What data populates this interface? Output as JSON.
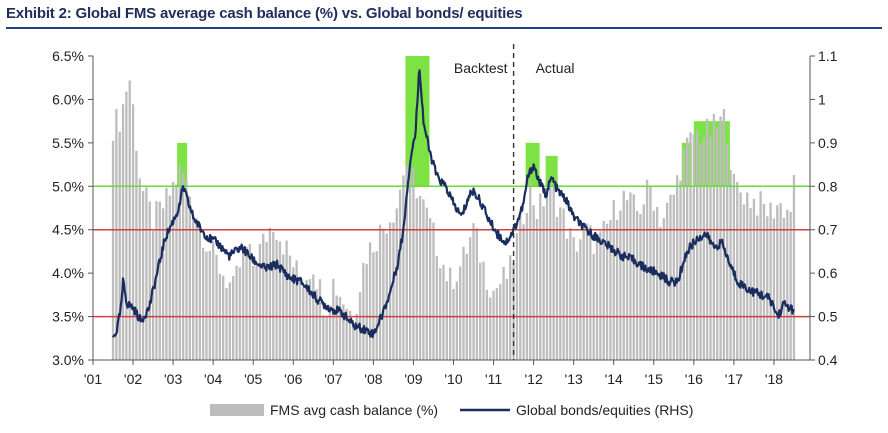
{
  "exhibit": {
    "title": "Exhibit 2: Global FMS average cash balance (%) vs. Global bonds/ equities"
  },
  "chart_data": {
    "type": "bar+line",
    "title": "Exhibit 2: Global FMS average cash balance (%) vs. Global bonds/ equities",
    "x_ticks": [
      "'01",
      "'02",
      "'03",
      "'04",
      "'05",
      "'06",
      "'07",
      "'08",
      "'09",
      "'10",
      "'11",
      "'12",
      "'13",
      "'14",
      "'15",
      "'16",
      "'17",
      "'18"
    ],
    "y_left": {
      "min": 3.0,
      "max": 6.5,
      "ticks": [
        "3.0%",
        "3.5%",
        "4.0%",
        "4.5%",
        "5.0%",
        "5.5%",
        "6.0%",
        "6.5%"
      ]
    },
    "y_right": {
      "min": 0.4,
      "max": 1.1,
      "ticks": [
        "0.4",
        "0.5",
        "0.6",
        "0.7",
        "0.8",
        "0.9",
        "1",
        "1.1"
      ]
    },
    "reference_lines": [
      {
        "axis": "left",
        "value": 5.0,
        "color": "#66dd33"
      },
      {
        "axis": "left",
        "value": 4.5,
        "color": "#d04040"
      },
      {
        "axis": "left",
        "value": 3.5,
        "color": "#d04040"
      }
    ],
    "annotations": {
      "backtest": "Backtest",
      "actual": "Actual",
      "divider_year": 2011.5
    },
    "highlight_color": "#66dd22",
    "highlights": [
      {
        "x0": 2003.1,
        "x1": 2003.35,
        "top": 0.9
      },
      {
        "x0": 2008.8,
        "x1": 2009.4,
        "top": 1.1
      },
      {
        "x0": 2011.8,
        "x1": 2012.15,
        "top": 0.9
      },
      {
        "x0": 2012.3,
        "x1": 2012.6,
        "top": 0.87
      },
      {
        "x0": 2015.7,
        "x1": 2015.95,
        "top": 0.9
      },
      {
        "x0": 2016.0,
        "x1": 2016.9,
        "top": 0.95
      }
    ],
    "series": [
      {
        "name": "FMS avg cash balance (%)",
        "axis": "left",
        "type": "bar",
        "color": "#bdbdbd",
        "anchors": [
          [
            2001.5,
            5.7
          ],
          [
            2001.7,
            5.8
          ],
          [
            2001.9,
            6.3
          ],
          [
            2002.0,
            5.9
          ],
          [
            2002.2,
            5.0
          ],
          [
            2002.5,
            4.6
          ],
          [
            2002.8,
            4.8
          ],
          [
            2003.0,
            5.0
          ],
          [
            2003.2,
            5.2
          ],
          [
            2003.5,
            4.8
          ],
          [
            2003.8,
            4.4
          ],
          [
            2004.0,
            4.2
          ],
          [
            2004.5,
            3.8
          ],
          [
            2004.8,
            4.3
          ],
          [
            2005.0,
            4.1
          ],
          [
            2005.5,
            4.6
          ],
          [
            2005.9,
            4.2
          ],
          [
            2006.2,
            3.9
          ],
          [
            2006.5,
            4.1
          ],
          [
            2006.8,
            3.6
          ],
          [
            2007.0,
            3.9
          ],
          [
            2007.5,
            3.5
          ],
          [
            2007.8,
            4.2
          ],
          [
            2008.2,
            4.5
          ],
          [
            2008.6,
            4.8
          ],
          [
            2008.8,
            5.3
          ],
          [
            2009.0,
            5.1
          ],
          [
            2009.3,
            4.7
          ],
          [
            2009.6,
            4.3
          ],
          [
            2009.9,
            3.9
          ],
          [
            2010.2,
            4.1
          ],
          [
            2010.5,
            4.5
          ],
          [
            2010.8,
            4.0
          ],
          [
            2011.0,
            3.8
          ],
          [
            2011.4,
            4.0
          ],
          [
            2011.6,
            4.4
          ],
          [
            2011.9,
            5.0
          ],
          [
            2012.1,
            4.7
          ],
          [
            2012.4,
            5.0
          ],
          [
            2012.7,
            4.7
          ],
          [
            2013.0,
            4.3
          ],
          [
            2013.3,
            4.5
          ],
          [
            2013.6,
            4.3
          ],
          [
            2013.9,
            4.6
          ],
          [
            2014.2,
            4.9
          ],
          [
            2014.6,
            4.7
          ],
          [
            2014.9,
            5.0
          ],
          [
            2015.2,
            4.6
          ],
          [
            2015.5,
            4.9
          ],
          [
            2015.7,
            5.3
          ],
          [
            2015.9,
            5.5
          ],
          [
            2016.0,
            5.6
          ],
          [
            2016.3,
            5.6
          ],
          [
            2016.6,
            5.7
          ],
          [
            2016.8,
            5.8
          ],
          [
            2017.0,
            5.0
          ],
          [
            2017.3,
            4.9
          ],
          [
            2017.6,
            4.8
          ],
          [
            2017.9,
            4.7
          ],
          [
            2018.1,
            4.8
          ],
          [
            2018.4,
            4.7
          ],
          [
            2018.5,
            5.0
          ]
        ]
      },
      {
        "name": "Global bonds/equities (RHS)",
        "axis": "right",
        "type": "line",
        "color": "#1a2d5e",
        "anchors": [
          [
            2001.5,
            0.45
          ],
          [
            2001.6,
            0.47
          ],
          [
            2001.7,
            0.52
          ],
          [
            2001.75,
            0.58
          ],
          [
            2001.85,
            0.53
          ],
          [
            2002.0,
            0.52
          ],
          [
            2002.2,
            0.49
          ],
          [
            2002.4,
            0.52
          ],
          [
            2002.6,
            0.6
          ],
          [
            2002.8,
            0.68
          ],
          [
            2003.0,
            0.72
          ],
          [
            2003.15,
            0.75
          ],
          [
            2003.25,
            0.8
          ],
          [
            2003.35,
            0.77
          ],
          [
            2003.5,
            0.73
          ],
          [
            2003.7,
            0.7
          ],
          [
            2003.9,
            0.68
          ],
          [
            2004.1,
            0.67
          ],
          [
            2004.4,
            0.64
          ],
          [
            2004.7,
            0.66
          ],
          [
            2005.0,
            0.63
          ],
          [
            2005.3,
            0.61
          ],
          [
            2005.6,
            0.62
          ],
          [
            2005.9,
            0.59
          ],
          [
            2006.2,
            0.58
          ],
          [
            2006.4,
            0.56
          ],
          [
            2006.6,
            0.54
          ],
          [
            2006.9,
            0.52
          ],
          [
            2007.2,
            0.51
          ],
          [
            2007.5,
            0.48
          ],
          [
            2007.8,
            0.47
          ],
          [
            2008.0,
            0.46
          ],
          [
            2008.2,
            0.5
          ],
          [
            2008.4,
            0.55
          ],
          [
            2008.6,
            0.62
          ],
          [
            2008.75,
            0.7
          ],
          [
            2008.85,
            0.8
          ],
          [
            2008.95,
            0.88
          ],
          [
            2009.05,
            0.92
          ],
          [
            2009.15,
            1.08
          ],
          [
            2009.25,
            0.95
          ],
          [
            2009.4,
            0.88
          ],
          [
            2009.6,
            0.82
          ],
          [
            2009.8,
            0.8
          ],
          [
            2010.0,
            0.76
          ],
          [
            2010.2,
            0.73
          ],
          [
            2010.4,
            0.78
          ],
          [
            2010.5,
            0.79
          ],
          [
            2010.7,
            0.76
          ],
          [
            2010.9,
            0.72
          ],
          [
            2011.1,
            0.69
          ],
          [
            2011.3,
            0.67
          ],
          [
            2011.45,
            0.69
          ],
          [
            2011.6,
            0.72
          ],
          [
            2011.75,
            0.76
          ],
          [
            2011.85,
            0.82
          ],
          [
            2012.0,
            0.85
          ],
          [
            2012.1,
            0.82
          ],
          [
            2012.3,
            0.78
          ],
          [
            2012.45,
            0.82
          ],
          [
            2012.6,
            0.79
          ],
          [
            2012.8,
            0.77
          ],
          [
            2013.0,
            0.73
          ],
          [
            2013.3,
            0.7
          ],
          [
            2013.6,
            0.68
          ],
          [
            2013.9,
            0.66
          ],
          [
            2014.2,
            0.64
          ],
          [
            2014.5,
            0.63
          ],
          [
            2014.8,
            0.61
          ],
          [
            2015.1,
            0.6
          ],
          [
            2015.4,
            0.58
          ],
          [
            2015.6,
            0.58
          ],
          [
            2015.75,
            0.63
          ],
          [
            2015.9,
            0.66
          ],
          [
            2016.1,
            0.68
          ],
          [
            2016.3,
            0.69
          ],
          [
            2016.5,
            0.66
          ],
          [
            2016.7,
            0.67
          ],
          [
            2016.9,
            0.62
          ],
          [
            2017.1,
            0.58
          ],
          [
            2017.4,
            0.56
          ],
          [
            2017.7,
            0.55
          ],
          [
            2017.9,
            0.54
          ],
          [
            2018.0,
            0.52
          ],
          [
            2018.1,
            0.5
          ],
          [
            2018.25,
            0.53
          ],
          [
            2018.4,
            0.52
          ],
          [
            2018.5,
            0.51
          ]
        ]
      }
    ],
    "legend": {
      "position": "bottom",
      "entries": [
        "FMS avg cash balance (%)",
        "Global bonds/equities (RHS)"
      ]
    }
  }
}
